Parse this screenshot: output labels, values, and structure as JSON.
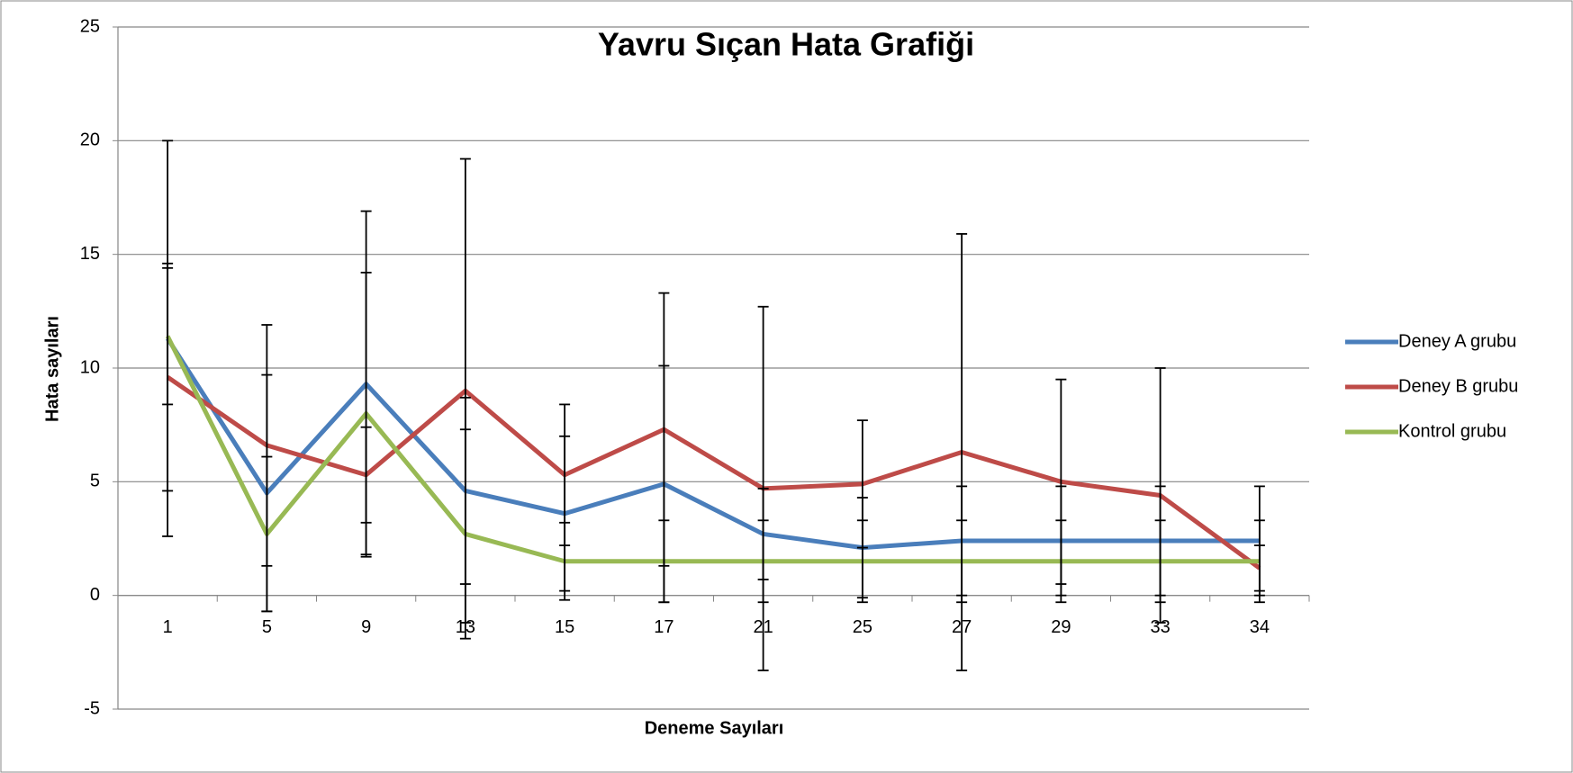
{
  "chart_data": {
    "type": "line",
    "title": "Yavru Sıçan Hata Grafiği",
    "x_label": "Deneme Sayıları",
    "y_label": "Hata sayıları",
    "categories": [
      "1",
      "5",
      "9",
      "13",
      "15",
      "17",
      "21",
      "25",
      "27",
      "29",
      "33",
      "34"
    ],
    "ylim": [
      -5,
      25
    ],
    "yticks": [
      -5,
      0,
      5,
      10,
      15,
      20,
      25
    ],
    "grid": true,
    "legend": "right",
    "series": [
      {
        "name": "Deney A grubu",
        "color": "#4a7ebb",
        "values": [
          11.3,
          4.5,
          9.3,
          4.6,
          3.6,
          4.9,
          2.7,
          2.1,
          2.4,
          2.4,
          2.4,
          2.4
        ],
        "errors": [
          8.7,
          5.2,
          7.6,
          4.1,
          3.4,
          5.2,
          2.0,
          2.2,
          2.4,
          2.4,
          2.4,
          2.4
        ]
      },
      {
        "name": "Deney B grubu",
        "color": "#be4b48",
        "values": [
          9.6,
          6.6,
          5.3,
          9.0,
          5.3,
          7.3,
          4.7,
          4.9,
          6.3,
          5.0,
          4.4,
          1.2
        ],
        "errors": [
          5.0,
          5.3,
          2.1,
          10.2,
          3.1,
          6.0,
          8.0,
          2.8,
          9.6,
          4.5,
          5.6,
          1.0
        ]
      },
      {
        "name": "Kontrol grubu",
        "color": "#98b954",
        "values": [
          11.4,
          2.7,
          8.0,
          2.7,
          1.5,
          1.5,
          1.5,
          1.5,
          1.5,
          1.5,
          1.5,
          1.5
        ],
        "errors": [
          3.0,
          3.4,
          6.2,
          4.6,
          1.7,
          1.8,
          1.8,
          1.8,
          1.8,
          1.8,
          1.8,
          1.8
        ]
      }
    ]
  }
}
